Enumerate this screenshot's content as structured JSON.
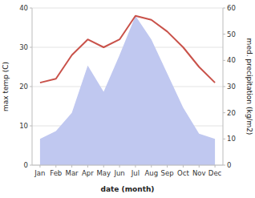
{
  "chart_data": {
    "type": "line",
    "xlabel": "date (month)",
    "ylabel": "max temp (C)",
    "y2label": "med. precipitation (kg/m2)",
    "categories": [
      "Jan",
      "Feb",
      "Mar",
      "Apr",
      "May",
      "Jun",
      "Jul",
      "Aug",
      "Sep",
      "Oct",
      "Nov",
      "Dec"
    ],
    "series": [
      {
        "type": "area",
        "axis": "y2",
        "color": "#c0c8f0",
        "values": [
          10,
          13,
          20,
          38,
          28,
          42,
          57,
          48,
          35,
          22,
          12,
          10
        ]
      },
      {
        "type": "line",
        "color": "#c9524a",
        "values": [
          21,
          22,
          28,
          32,
          30,
          32,
          38,
          37,
          34,
          30,
          25,
          21
        ]
      }
    ],
    "ylim": [
      0,
      40
    ],
    "yticks": [
      0,
      10,
      20,
      30,
      40
    ],
    "y2lim": [
      0,
      60
    ],
    "y2ticks": [
      0,
      10,
      20,
      30,
      40,
      50,
      60
    ],
    "grid": true
  }
}
